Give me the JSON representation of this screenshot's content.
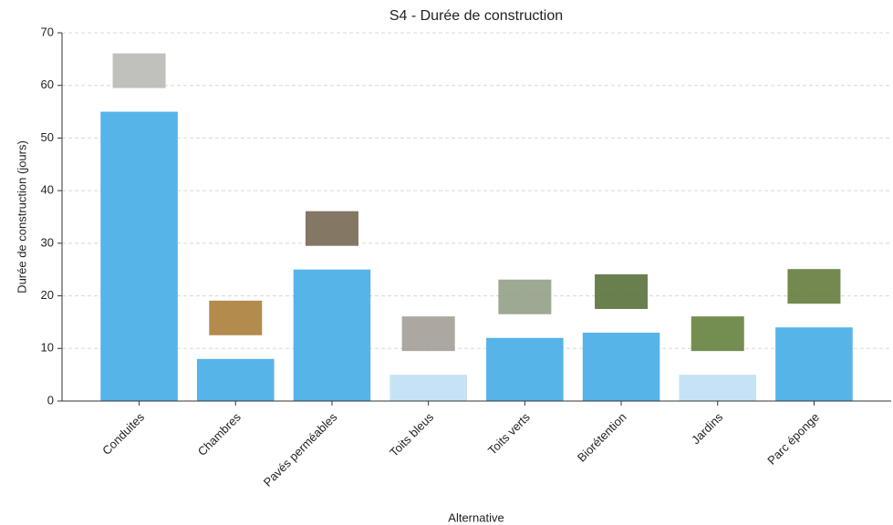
{
  "chart_data": {
    "type": "bar",
    "title": "S4 - Durée de construction",
    "x_label": "Alternative",
    "y_label": "Durée de construction (jours)",
    "categories": [
      "Conduites",
      "Chambres",
      "Pavés perméables",
      "Toits bleus",
      "Toits verts",
      "Biorétention",
      "Jardins",
      "Parc éponge"
    ],
    "values": [
      55,
      8,
      25,
      5,
      12,
      13,
      5,
      14
    ],
    "colors": [
      "#56b4e9",
      "#56b4e9",
      "#56b4e9",
      "#c6e3f6",
      "#56b4e9",
      "#56b4e9",
      "#c6e3f6",
      "#56b4e9"
    ],
    "ylim": [
      0,
      70
    ],
    "yticks": [
      0,
      10,
      20,
      30,
      40,
      50,
      60,
      70
    ],
    "grid": true
  }
}
